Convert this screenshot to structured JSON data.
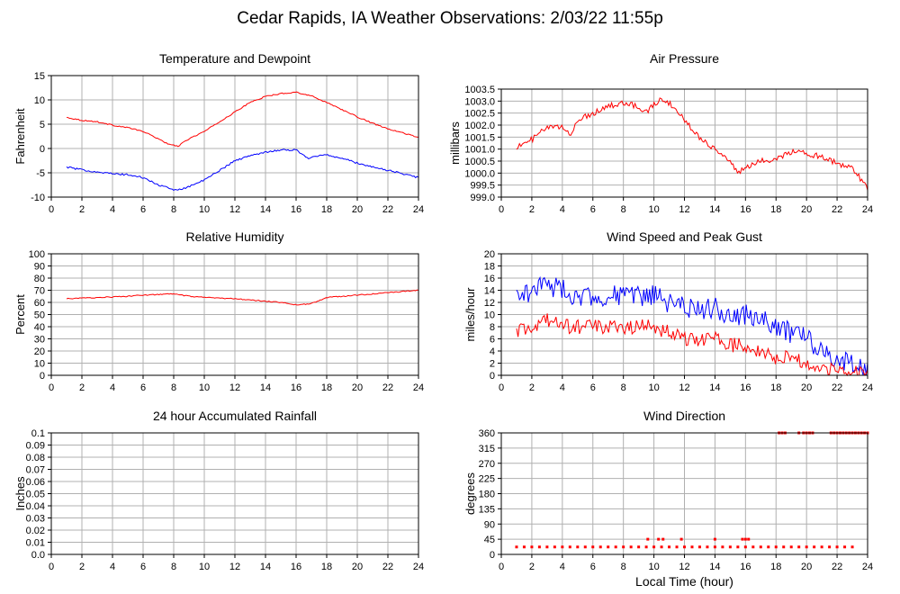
{
  "title": "Cedar Rapids, IA Weather Observations: 2/03/22 11:55p",
  "chart_data": [
    {
      "id": "temp",
      "type": "line",
      "title": "Temperature and Dewpoint",
      "ylabel": "Fahrenheit",
      "xlabel": "",
      "xlim": [
        0,
        24
      ],
      "xticks": [
        0,
        2,
        4,
        6,
        8,
        10,
        12,
        14,
        16,
        18,
        20,
        22,
        24
      ],
      "ylim": [
        -10,
        15
      ],
      "yticks": [
        -10,
        -5,
        0,
        5,
        10,
        15
      ],
      "ytick_labels": [
        "-10",
        "-5",
        "0",
        "5",
        "10",
        "15"
      ],
      "grid": true,
      "series": [
        {
          "color": "#ff0000",
          "noise": 0.12,
          "values": [
            [
              1,
              6.4
            ],
            [
              2,
              5.8
            ],
            [
              3,
              5.5
            ],
            [
              4,
              4.8
            ],
            [
              5,
              4.3
            ],
            [
              6,
              3.5
            ],
            [
              7,
              2.0
            ],
            [
              7.7,
              0.8
            ],
            [
              8.3,
              0.5
            ],
            [
              9,
              2.0
            ],
            [
              10,
              3.5
            ],
            [
              11,
              5.5
            ],
            [
              12,
              7.5
            ],
            [
              13,
              9.5
            ],
            [
              14,
              10.7
            ],
            [
              15,
              11.3
            ],
            [
              16,
              11.6
            ],
            [
              17,
              10.8
            ],
            [
              18,
              9.5
            ],
            [
              19,
              8.0
            ],
            [
              20,
              6.5
            ],
            [
              21,
              5.2
            ],
            [
              22,
              4.0
            ],
            [
              23,
              3.2
            ],
            [
              24,
              2.3
            ]
          ]
        },
        {
          "color": "#0000ff",
          "noise": 0.18,
          "values": [
            [
              1,
              -3.8
            ],
            [
              2,
              -4.4
            ],
            [
              3,
              -4.8
            ],
            [
              4,
              -5.2
            ],
            [
              5,
              -5.4
            ],
            [
              6,
              -6.0
            ],
            [
              7,
              -7.5
            ],
            [
              8,
              -8.5
            ],
            [
              8.7,
              -8.2
            ],
            [
              10,
              -6.5
            ],
            [
              11,
              -4.5
            ],
            [
              12,
              -2.5
            ],
            [
              13,
              -1.5
            ],
            [
              14,
              -0.7
            ],
            [
              15,
              -0.3
            ],
            [
              16,
              -0.3
            ],
            [
              16.8,
              -2.0
            ],
            [
              17.5,
              -1.5
            ],
            [
              18,
              -1.3
            ],
            [
              19,
              -2.0
            ],
            [
              20,
              -3.0
            ],
            [
              21,
              -3.8
            ],
            [
              22,
              -4.5
            ],
            [
              23,
              -5.2
            ],
            [
              24,
              -6.0
            ]
          ]
        }
      ]
    },
    {
      "id": "pressure",
      "type": "line",
      "title": "Air Pressure",
      "ylabel": "millibars",
      "xlabel": "",
      "xlim": [
        0,
        24
      ],
      "xticks": [
        0,
        2,
        4,
        6,
        8,
        10,
        12,
        14,
        16,
        18,
        20,
        22,
        24
      ],
      "ylim": [
        999.0,
        1003.5
      ],
      "yticks": [
        999.0,
        999.5,
        1000.0,
        1000.5,
        1001.0,
        1001.5,
        1002.0,
        1002.5,
        1003.0,
        1003.5
      ],
      "ytick_labels": [
        "999.0",
        "999.5",
        "1000.0",
        "1000.5",
        "1001.0",
        "1001.5",
        "1002.0",
        "1002.5",
        "1003.0",
        "1003.5"
      ],
      "grid": true,
      "series": [
        {
          "color": "#ff0000",
          "noise": 0.12,
          "values": [
            [
              1,
              1001.1
            ],
            [
              1.5,
              1001.2
            ],
            [
              2,
              1001.4
            ],
            [
              3,
              1001.9
            ],
            [
              4,
              1001.9
            ],
            [
              4.5,
              1001.6
            ],
            [
              5,
              1002.2
            ],
            [
              6,
              1002.5
            ],
            [
              7,
              1002.8
            ],
            [
              8,
              1002.9
            ],
            [
              9,
              1002.8
            ],
            [
              9.5,
              1002.5
            ],
            [
              10,
              1002.9
            ],
            [
              10.7,
              1003.1
            ],
            [
              11.2,
              1002.8
            ],
            [
              12,
              1002.2
            ],
            [
              13,
              1001.5
            ],
            [
              14,
              1001.0
            ],
            [
              15,
              1000.5
            ],
            [
              15.5,
              1000.0
            ],
            [
              16,
              1000.2
            ],
            [
              17,
              1000.5
            ],
            [
              18,
              1000.6
            ],
            [
              19,
              1000.9
            ],
            [
              20,
              1000.8
            ],
            [
              21,
              1000.7
            ],
            [
              22,
              1000.4
            ],
            [
              23,
              1000.2
            ],
            [
              24,
              999.4
            ]
          ]
        }
      ]
    },
    {
      "id": "humidity",
      "type": "line",
      "title": "Relative Humidity",
      "ylabel": "Percent",
      "xlabel": "",
      "xlim": [
        0,
        24
      ],
      "xticks": [
        0,
        2,
        4,
        6,
        8,
        10,
        12,
        14,
        16,
        18,
        20,
        22,
        24
      ],
      "ylim": [
        0,
        100
      ],
      "yticks": [
        0,
        10,
        20,
        30,
        40,
        50,
        60,
        70,
        80,
        90,
        100
      ],
      "ytick_labels": [
        "0",
        "10",
        "20",
        "30",
        "40",
        "50",
        "60",
        "70",
        "80",
        "90",
        "100"
      ],
      "grid": true,
      "series": [
        {
          "color": "#ff0000",
          "noise": 0.4,
          "values": [
            [
              1,
              63
            ],
            [
              3,
              64
            ],
            [
              5,
              65
            ],
            [
              6,
              66
            ],
            [
              8,
              67
            ],
            [
              9,
              65
            ],
            [
              10,
              64
            ],
            [
              12,
              63
            ],
            [
              13,
              62
            ],
            [
              14,
              61
            ],
            [
              15,
              60
            ],
            [
              16,
              58
            ],
            [
              17,
              59
            ],
            [
              18,
              64
            ],
            [
              19,
              65
            ],
            [
              20,
              66
            ],
            [
              21,
              67
            ],
            [
              22,
              68
            ],
            [
              23,
              69
            ],
            [
              24,
              70
            ]
          ]
        }
      ]
    },
    {
      "id": "wind",
      "type": "line",
      "title": "Wind Speed and Peak Gust",
      "ylabel": "miles/hour",
      "xlabel": "",
      "xlim": [
        0,
        24
      ],
      "xticks": [
        0,
        2,
        4,
        6,
        8,
        10,
        12,
        14,
        16,
        18,
        20,
        22,
        24
      ],
      "ylim": [
        0,
        20
      ],
      "yticks": [
        0,
        2,
        4,
        6,
        8,
        10,
        12,
        14,
        16,
        18,
        20
      ],
      "ytick_labels": [
        "0",
        "2",
        "4",
        "6",
        "8",
        "10",
        "12",
        "14",
        "16",
        "18",
        "20"
      ],
      "grid": true,
      "series": [
        {
          "color": "#0000ff",
          "noise": 1.8,
          "values": [
            [
              1,
              13
            ],
            [
              2,
              14
            ],
            [
              3,
              15
            ],
            [
              4,
              14
            ],
            [
              5,
              13
            ],
            [
              6,
              13
            ],
            [
              8,
              13
            ],
            [
              10,
              13
            ],
            [
              11,
              12
            ],
            [
              12,
              11
            ],
            [
              13,
              11
            ],
            [
              14,
              11
            ],
            [
              15,
              10
            ],
            [
              16,
              10
            ],
            [
              17,
              9
            ],
            [
              18,
              8
            ],
            [
              19,
              7
            ],
            [
              20,
              6
            ],
            [
              21,
              4
            ],
            [
              22,
              3
            ],
            [
              23,
              2
            ],
            [
              24,
              1
            ]
          ]
        },
        {
          "color": "#ff0000",
          "noise": 1.2,
          "values": [
            [
              1,
              7
            ],
            [
              2,
              8
            ],
            [
              3,
              9
            ],
            [
              4,
              8
            ],
            [
              6,
              8
            ],
            [
              8,
              8
            ],
            [
              10,
              8
            ],
            [
              11,
              7
            ],
            [
              12,
              6
            ],
            [
              13,
              6
            ],
            [
              14,
              6
            ],
            [
              15,
              5
            ],
            [
              16,
              5
            ],
            [
              17,
              4
            ],
            [
              18,
              3
            ],
            [
              19,
              3
            ],
            [
              20,
              2
            ],
            [
              21,
              1
            ],
            [
              22,
              1
            ],
            [
              24,
              0
            ]
          ]
        }
      ]
    },
    {
      "id": "rain",
      "type": "line",
      "title": "24 hour Accumulated Rainfall",
      "ylabel": "Inches",
      "xlabel": "",
      "xlim": [
        0,
        24
      ],
      "xticks": [
        0,
        2,
        4,
        6,
        8,
        10,
        12,
        14,
        16,
        18,
        20,
        22,
        24
      ],
      "ylim": [
        0,
        0.1
      ],
      "yticks": [
        0,
        0.01,
        0.02,
        0.03,
        0.04,
        0.05,
        0.06,
        0.07,
        0.08,
        0.09,
        0.1
      ],
      "ytick_labels": [
        "0.0",
        "0.01",
        "0.02",
        "0.03",
        "0.04",
        "0.05",
        "0.06",
        "0.07",
        "0.08",
        "0.09",
        "0.1"
      ],
      "grid": true,
      "series": [
        {
          "color": "#ff0000",
          "noise": 0,
          "values": [
            [
              1,
              0
            ],
            [
              24,
              0
            ]
          ]
        }
      ]
    },
    {
      "id": "direction",
      "type": "scatter",
      "title": "Wind Direction",
      "ylabel": "degrees",
      "xlabel": "Local Time (hour)",
      "xlim": [
        0,
        24
      ],
      "xticks": [
        0,
        2,
        4,
        6,
        8,
        10,
        12,
        14,
        16,
        18,
        20,
        22,
        24
      ],
      "ylim": [
        0,
        360
      ],
      "yticks": [
        0,
        45,
        90,
        135,
        180,
        225,
        270,
        315,
        360
      ],
      "ytick_labels": [
        "0",
        "45",
        "90",
        "135",
        "180",
        "225",
        "270",
        "315",
        "360"
      ],
      "grid": true,
      "series": [
        {
          "color": "#ff0000",
          "values": [
            [
              1,
              22
            ],
            [
              1.5,
              22
            ],
            [
              2,
              22
            ],
            [
              2.5,
              22
            ],
            [
              3,
              22
            ],
            [
              3.5,
              22
            ],
            [
              4,
              22
            ],
            [
              4.5,
              22
            ],
            [
              5,
              22
            ],
            [
              5.5,
              22
            ],
            [
              6,
              22
            ],
            [
              6.5,
              22
            ],
            [
              7,
              22
            ],
            [
              7.5,
              22
            ],
            [
              8,
              22
            ],
            [
              8.5,
              22
            ],
            [
              9,
              22
            ],
            [
              9.5,
              22
            ],
            [
              10,
              22
            ],
            [
              10.5,
              22
            ],
            [
              11,
              22
            ],
            [
              11.5,
              22
            ],
            [
              12,
              22
            ],
            [
              12.5,
              22
            ],
            [
              13,
              22
            ],
            [
              13.5,
              22
            ],
            [
              14,
              22
            ],
            [
              14.5,
              22
            ],
            [
              15,
              22
            ],
            [
              15.5,
              22
            ],
            [
              16,
              22
            ],
            [
              16.5,
              22
            ],
            [
              17,
              22
            ],
            [
              17.5,
              22
            ],
            [
              18,
              22
            ],
            [
              18.5,
              22
            ],
            [
              19,
              22
            ],
            [
              19.5,
              22
            ],
            [
              20,
              22
            ],
            [
              20.5,
              22
            ],
            [
              21,
              22
            ],
            [
              21.5,
              22
            ],
            [
              22,
              22
            ],
            [
              22.5,
              22
            ],
            [
              23,
              22
            ],
            [
              9.6,
              45
            ],
            [
              10.3,
              45
            ],
            [
              10.6,
              45
            ],
            [
              11.8,
              45
            ],
            [
              14.0,
              45
            ],
            [
              15.8,
              45
            ],
            [
              16.0,
              45
            ],
            [
              16.2,
              45
            ],
            [
              18.2,
              360
            ],
            [
              18.4,
              360
            ],
            [
              18.6,
              360
            ],
            [
              19.5,
              360
            ],
            [
              19.8,
              360
            ],
            [
              20.0,
              360
            ],
            [
              20.2,
              360
            ],
            [
              20.4,
              360
            ],
            [
              21.6,
              360
            ],
            [
              21.8,
              360
            ],
            [
              22.0,
              360
            ],
            [
              22.2,
              360
            ],
            [
              22.4,
              360
            ],
            [
              22.6,
              360
            ],
            [
              22.8,
              360
            ],
            [
              23.0,
              360
            ],
            [
              23.2,
              360
            ],
            [
              23.4,
              360
            ],
            [
              23.6,
              360
            ],
            [
              23.8,
              360
            ],
            [
              24.0,
              360
            ]
          ]
        }
      ]
    }
  ]
}
